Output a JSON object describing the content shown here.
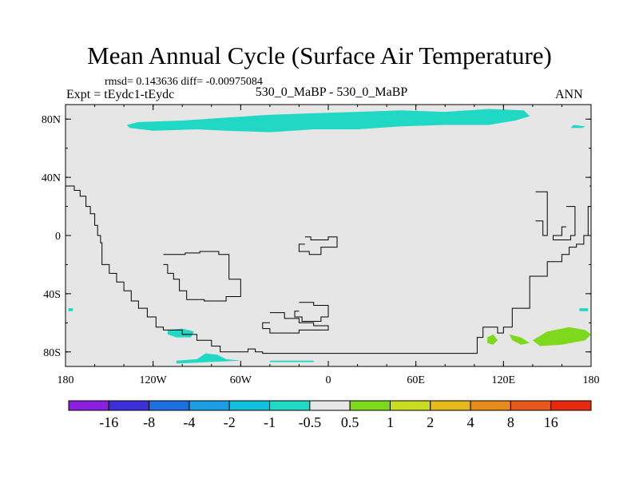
{
  "title": "Mean Annual Cycle (Surface Air Temperature)",
  "stats": "rmsd= 0.143636 diff= -0.00975084",
  "expt": "Expt = tEydc1-tEydc",
  "center_label": "530_0_MaBP - 530_0_MaBP",
  "season": "ANN",
  "chart_data": {
    "type": "heatmap",
    "title": "Mean Annual Cycle (Surface Air Temperature)",
    "x_range": [
      -180,
      180
    ],
    "y_range": [
      -90,
      90
    ],
    "x_ticks": [
      {
        "value": -180,
        "label": "180"
      },
      {
        "value": -120,
        "label": "120W"
      },
      {
        "value": -60,
        "label": "60W"
      },
      {
        "value": 0,
        "label": "0"
      },
      {
        "value": 60,
        "label": "60E"
      },
      {
        "value": 120,
        "label": "120E"
      },
      {
        "value": 180,
        "label": "180"
      }
    ],
    "y_ticks": [
      {
        "value": 80,
        "label": "80N"
      },
      {
        "value": 40,
        "label": "40N"
      },
      {
        "value": 0,
        "label": "0"
      },
      {
        "value": -40,
        "label": "40S"
      },
      {
        "value": -80,
        "label": "80S"
      }
    ],
    "background_color": "#e6e6e6",
    "colorbar": {
      "colors": [
        "#8a1fe0",
        "#3c30d8",
        "#1c6fe0",
        "#1c9ee6",
        "#10c0dc",
        "#20d8c4",
        "#e6e6e6",
        "#7ed81c",
        "#c8dc20",
        "#e6b81c",
        "#e68a1c",
        "#e6581c",
        "#e62a10"
      ],
      "labels": [
        "-16",
        "-8",
        "-4",
        "-2",
        "-1",
        "-0.5",
        "0.5",
        "1",
        "2",
        "4",
        "8",
        "16"
      ]
    },
    "anomaly_regions": [
      {
        "name": "arctic-cooling",
        "color": "#20d8c4",
        "points": [
          [
            -136,
            74
          ],
          [
            -120,
            72
          ],
          [
            -90,
            73
          ],
          [
            -70,
            72
          ],
          [
            -40,
            71
          ],
          [
            -10,
            73
          ],
          [
            20,
            73
          ],
          [
            50,
            75
          ],
          [
            80,
            76
          ],
          [
            110,
            76
          ],
          [
            128,
            79
          ],
          [
            138,
            82
          ],
          [
            134,
            86
          ],
          [
            110,
            87
          ],
          [
            80,
            85
          ],
          [
            50,
            86
          ],
          [
            20,
            85
          ],
          [
            -10,
            84
          ],
          [
            -40,
            83
          ],
          [
            -70,
            81
          ],
          [
            -100,
            79
          ],
          [
            -130,
            78
          ],
          [
            -138,
            76
          ]
        ]
      },
      {
        "name": "arctic-east-spot",
        "color": "#20d8c4",
        "points": [
          [
            166,
            74
          ],
          [
            174,
            74
          ],
          [
            176,
            75
          ],
          [
            168,
            76
          ]
        ]
      },
      {
        "name": "antarctic-coast-cooling",
        "color": "#20d8c4",
        "points": [
          [
            -110,
            -65
          ],
          [
            -100,
            -64
          ],
          [
            -92,
            -66
          ],
          [
            -94,
            -70
          ],
          [
            -104,
            -70
          ],
          [
            -110,
            -68
          ]
        ]
      },
      {
        "name": "antarctic-shelf-cooling",
        "color": "#20d8c4",
        "points": [
          [
            -104,
            -86
          ],
          [
            -90,
            -85
          ],
          [
            -84,
            -81
          ],
          [
            -76,
            -82
          ],
          [
            -70,
            -85
          ],
          [
            -60,
            -86
          ],
          [
            -104,
            -88
          ]
        ]
      },
      {
        "name": "antarctic-shelf-strip",
        "color": "#20d8c4",
        "points": [
          [
            -40,
            -86
          ],
          [
            -10,
            -86
          ],
          [
            -10,
            -87
          ],
          [
            -40,
            -87
          ]
        ]
      },
      {
        "name": "west-edge-spot",
        "color": "#20d8c4",
        "points": [
          [
            -178,
            -50
          ],
          [
            -175,
            -50
          ],
          [
            -175,
            -52
          ],
          [
            -178,
            -52
          ]
        ]
      },
      {
        "name": "east-edge-spot",
        "color": "#20d8c4",
        "points": [
          [
            172,
            -50
          ],
          [
            178,
            -50
          ],
          [
            178,
            -52
          ],
          [
            172,
            -52
          ]
        ]
      },
      {
        "name": "antarctic-warming-east",
        "color": "#7ed81c",
        "points": [
          [
            140,
            -72
          ],
          [
            150,
            -66
          ],
          [
            165,
            -63
          ],
          [
            176,
            -65
          ],
          [
            180,
            -68
          ],
          [
            176,
            -72
          ],
          [
            160,
            -75
          ],
          [
            145,
            -76
          ]
        ]
      },
      {
        "name": "antarctic-warming-spot-a",
        "color": "#7ed81c",
        "points": [
          [
            109,
            -70
          ],
          [
            113,
            -68
          ],
          [
            116,
            -72
          ],
          [
            113,
            -75
          ],
          [
            109,
            -74
          ]
        ]
      },
      {
        "name": "antarctic-warming-spot-b",
        "color": "#7ed81c",
        "points": [
          [
            124,
            -68
          ],
          [
            132,
            -70
          ],
          [
            138,
            -74
          ],
          [
            132,
            -75
          ],
          [
            126,
            -72
          ]
        ]
      }
    ],
    "continent_outlines": [
      [
        [
          -180,
          34
        ],
        [
          -174,
          34
        ],
        [
          -174,
          31
        ],
        [
          -170,
          31
        ],
        [
          -170,
          27
        ],
        [
          -166,
          27
        ],
        [
          -166,
          20
        ],
        [
          -163,
          20
        ],
        [
          -163,
          15
        ],
        [
          -160,
          15
        ],
        [
          -160,
          7
        ],
        [
          -158,
          7
        ],
        [
          -158,
          0
        ],
        [
          -156,
          0
        ],
        [
          -156,
          -5
        ],
        [
          -155,
          -5
        ],
        [
          -155,
          -20
        ],
        [
          -150,
          -20
        ],
        [
          -150,
          -26
        ],
        [
          -145,
          -26
        ],
        [
          -145,
          -32
        ],
        [
          -140,
          -32
        ],
        [
          -140,
          -38
        ],
        [
          -135,
          -38
        ],
        [
          -135,
          -45
        ],
        [
          -130,
          -45
        ],
        [
          -130,
          -50
        ],
        [
          -124,
          -50
        ],
        [
          -124,
          -56
        ],
        [
          -118,
          -56
        ],
        [
          -118,
          -63
        ],
        [
          -113,
          -63
        ],
        [
          -113,
          -65
        ],
        [
          -100,
          -65
        ],
        [
          -100,
          -68
        ],
        [
          -90,
          -68
        ],
        [
          -90,
          -72
        ],
        [
          -80,
          -72
        ],
        [
          -80,
          -76
        ],
        [
          -74,
          -76
        ],
        [
          -74,
          -80
        ],
        [
          -55,
          -80
        ],
        [
          -55,
          -78
        ],
        [
          -50,
          -78
        ],
        [
          -50,
          -80
        ],
        [
          -45,
          -80
        ],
        [
          -45,
          -81
        ],
        [
          102,
          -81
        ],
        [
          102,
          -70
        ],
        [
          106,
          -70
        ],
        [
          106,
          -63
        ],
        [
          116,
          -63
        ],
        [
          116,
          -67
        ],
        [
          120,
          -67
        ],
        [
          120,
          -63
        ],
        [
          126,
          -63
        ],
        [
          126,
          -50
        ],
        [
          138,
          -50
        ],
        [
          138,
          -28
        ],
        [
          150,
          -28
        ],
        [
          150,
          -18
        ],
        [
          160,
          -18
        ],
        [
          160,
          -13
        ],
        [
          165,
          -13
        ],
        [
          165,
          -8
        ],
        [
          170,
          -8
        ],
        [
          170,
          -6
        ],
        [
          175,
          -6
        ],
        [
          175,
          0
        ],
        [
          178,
          0
        ],
        [
          178,
          20
        ],
        [
          180,
          20
        ]
      ],
      [
        [
          -113,
          -13
        ],
        [
          -98,
          -13
        ],
        [
          -98,
          -12
        ],
        [
          -88,
          -12
        ],
        [
          -88,
          -11
        ],
        [
          -75,
          -11
        ],
        [
          -75,
          -13
        ],
        [
          -68,
          -13
        ],
        [
          -68,
          -30
        ],
        [
          -60,
          -30
        ],
        [
          -60,
          -42
        ],
        [
          -70,
          -42
        ],
        [
          -70,
          -45
        ],
        [
          -85,
          -45
        ],
        [
          -85,
          -44
        ],
        [
          -97,
          -44
        ],
        [
          -97,
          -38
        ],
        [
          -102,
          -38
        ],
        [
          -102,
          -30
        ],
        [
          -106,
          -30
        ],
        [
          -106,
          -26
        ],
        [
          -110,
          -26
        ],
        [
          -110,
          -20
        ],
        [
          -113,
          -20
        ]
      ],
      [
        [
          -16,
          -1
        ],
        [
          -12,
          -1
        ],
        [
          -12,
          -3
        ],
        [
          0,
          -3
        ],
        [
          0,
          -1
        ],
        [
          6,
          -1
        ],
        [
          6,
          -8
        ],
        [
          -5,
          -8
        ],
        [
          -5,
          -13
        ],
        [
          -13,
          -13
        ],
        [
          -13,
          -11
        ],
        [
          -20,
          -11
        ],
        [
          -20,
          -6
        ],
        [
          -16,
          -6
        ]
      ],
      [
        [
          -20,
          -46
        ],
        [
          -10,
          -46
        ],
        [
          -10,
          -48
        ],
        [
          0,
          -48
        ],
        [
          0,
          -56
        ],
        [
          -5,
          -56
        ],
        [
          -5,
          -59
        ],
        [
          -18,
          -59
        ],
        [
          -18,
          -56
        ],
        [
          -23,
          -56
        ],
        [
          -23,
          -52
        ],
        [
          -20,
          -52
        ]
      ],
      [
        [
          -40,
          -53
        ],
        [
          -30,
          -53
        ],
        [
          -30,
          -57
        ],
        [
          -20,
          -57
        ],
        [
          -20,
          -60
        ],
        [
          -10,
          -60
        ],
        [
          -10,
          -62
        ],
        [
          0,
          -62
        ],
        [
          0,
          -65
        ],
        [
          -20,
          -65
        ],
        [
          -20,
          -67
        ],
        [
          -40,
          -67
        ],
        [
          -40,
          -64
        ],
        [
          -45,
          -64
        ],
        [
          -45,
          -60
        ],
        [
          -40,
          -60
        ]
      ],
      [
        [
          142,
          30
        ],
        [
          150,
          30
        ],
        [
          150,
          0
        ],
        [
          147,
          0
        ],
        [
          147,
          10
        ],
        [
          142,
          10
        ]
      ],
      [
        [
          163,
          20
        ],
        [
          169,
          20
        ],
        [
          169,
          0
        ],
        [
          166,
          0
        ],
        [
          166,
          -3
        ],
        [
          154,
          -3
        ],
        [
          154,
          0
        ],
        [
          160,
          0
        ],
        [
          160,
          6
        ],
        [
          163,
          6
        ]
      ],
      [
        [
          179,
          34
        ],
        [
          180,
          34
        ]
      ]
    ]
  }
}
